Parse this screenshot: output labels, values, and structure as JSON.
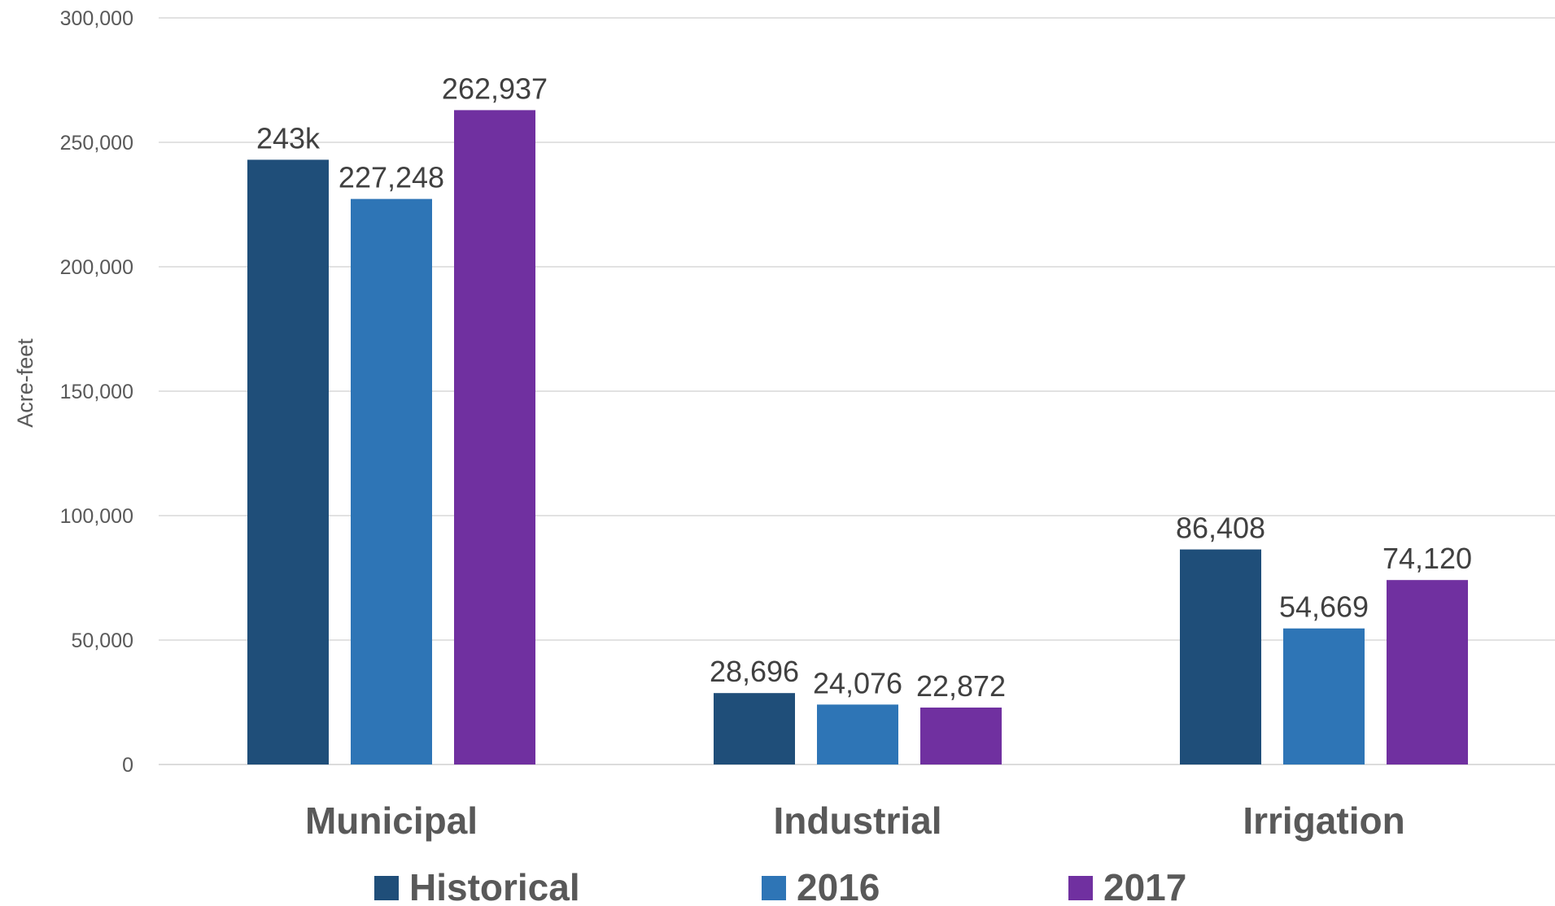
{
  "chart_data": {
    "type": "bar",
    "title": "",
    "xlabel": "",
    "ylabel": "Acre-feet",
    "ylim": [
      0,
      300000
    ],
    "y_ticks": [
      0,
      50000,
      100000,
      150000,
      200000,
      250000,
      300000
    ],
    "y_tick_labels": [
      "0",
      "50,000",
      "100,000",
      "150,000",
      "200,000",
      "250,000",
      "300,000"
    ],
    "categories": [
      "Municipal",
      "Industrial",
      "Irrigation"
    ],
    "series": [
      {
        "name": "Historical",
        "color": "#1f4e79",
        "values": [
          243000,
          28696,
          86408
        ],
        "labels": [
          "243k",
          "28,696",
          "86,408"
        ]
      },
      {
        "name": "2016",
        "color": "#2e75b6",
        "values": [
          227248,
          24076,
          54669
        ],
        "labels": [
          "227,248",
          "24,076",
          "54,669"
        ]
      },
      {
        "name": "2017",
        "color": "#7030a0",
        "values": [
          262937,
          22872,
          74120
        ],
        "labels": [
          "262,937",
          "22,872",
          "74,120"
        ]
      }
    ],
    "grid": true,
    "legend_position": "bottom"
  }
}
